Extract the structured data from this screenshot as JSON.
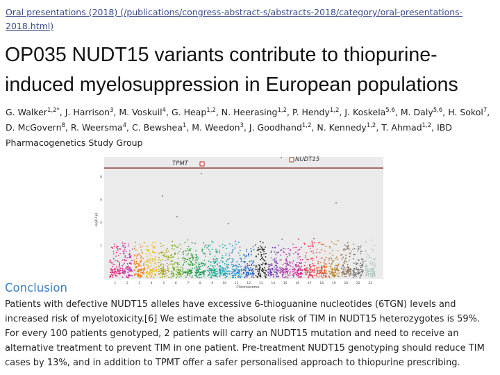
{
  "breadcrumb": "Oral presentations (2018) (/publications/congress-abstract-s/abstracts-2018/category/oral-presentations-2018.html)",
  "title_lines": [
    "OP035 NUDT15 variants contribute to thiopurine-",
    "induced myelosuppression in European populations"
  ],
  "authors": [
    {
      "name": "G. Walker",
      "sup": "1,2*"
    },
    {
      "name": "J. Harrison",
      "sup": "3"
    },
    {
      "name": "M. Voskuil",
      "sup": "4"
    },
    {
      "name": "G. Heap",
      "sup": "1,2"
    },
    {
      "name": "N. Heerasing",
      "sup": "1,2"
    },
    {
      "name": "P. Hendy",
      "sup": "1,2"
    },
    {
      "name": "J. Koskela",
      "sup": "5,6"
    },
    {
      "name": "M. Daly",
      "sup": "5,6"
    },
    {
      "name": "H. Sokol",
      "sup": "7"
    },
    {
      "name": "D. McGovern",
      "sup": "8"
    },
    {
      "name": "R. Weersma",
      "sup": "4"
    },
    {
      "name": "C. Bewshea",
      "sup": "1"
    },
    {
      "name": "M. Weedon",
      "sup": "3"
    },
    {
      "name": "J. Goodhand",
      "sup": "1,2"
    },
    {
      "name": "N. Kennedy",
      "sup": "1,2"
    },
    {
      "name": "T. Ahmad",
      "sup": "1,2"
    },
    {
      "name": "IBD Pharmacogenetics Study Group"
    }
  ],
  "figure": {
    "label_left": "TPMT",
    "label_right": "NUDT15",
    "x_label": "Chromosome",
    "y_label": "-log10(p)",
    "y_ticks": [
      "2",
      "4",
      "6",
      "8"
    ],
    "chromosomes": [
      "1",
      "2",
      "3",
      "4",
      "5",
      "6",
      "7",
      "8",
      "9",
      "10",
      "11",
      "12",
      "13",
      "14",
      "15",
      "16",
      "17",
      "18",
      "19",
      "20",
      "22",
      "23"
    ]
  },
  "conclusion": {
    "heading": "Conclusion",
    "lines": [
      "Patients with defective NUDT15 alleles have excessive 6-thioguanine nucleotides (6TGN) levels and",
      "increased risk of myelotoxicity.[6] We estimate the absolute risk of TIM in NUDT15 heterozygotes is 59%.",
      "For every 100 patients genotyped, 2 patients will carry an NUDT15 mutation and need to receive an",
      "alternative treatment to prevent TIM in one patient. Pre-treatment NUDT15 genotyping should reduce TIM",
      "cases by 13%, and in addition to TPMT offer a safer personalised approach to thiopurine prescribing."
    ]
  }
}
